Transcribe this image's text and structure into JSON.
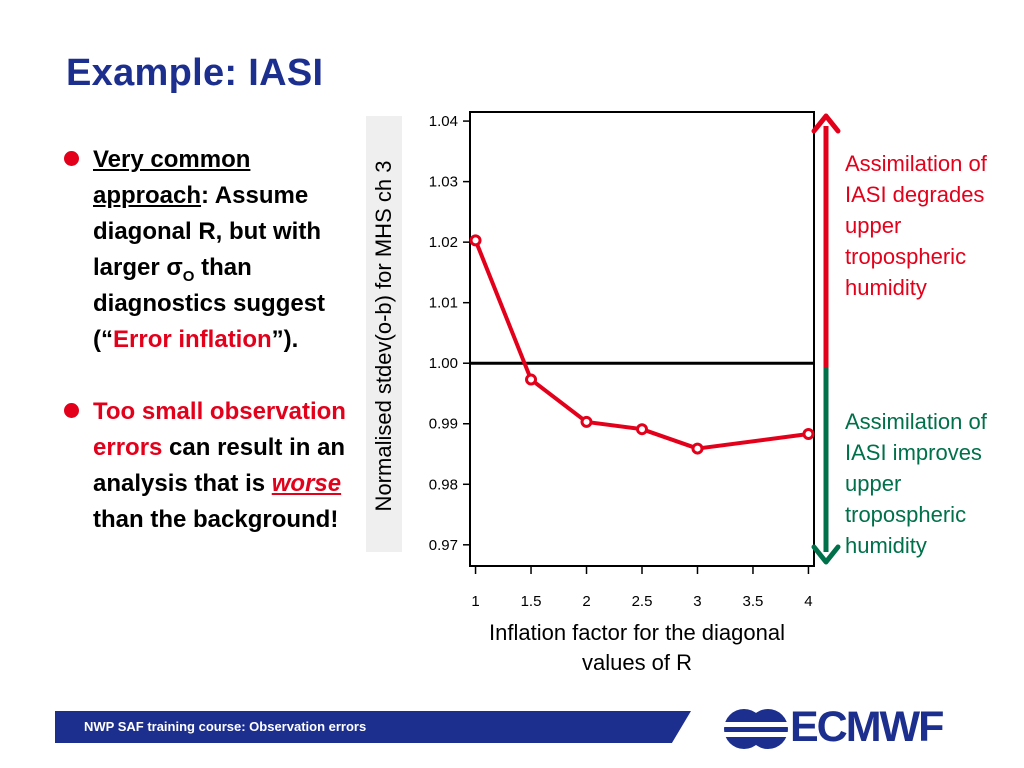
{
  "slide": {
    "title": "Example: IASI",
    "bullets": [
      {
        "term": "Very common approach",
        "text_a": ": Assume diagonal R, but with larger σ",
        "sub": "O",
        "text_b": " than diagnostics suggest (“",
        "emph": "Error inflation",
        "text_c": "”)."
      },
      {
        "emph": "Too small observation errors",
        "text_a": " can result in an analysis that is ",
        "emph2": "worse",
        "text_b": " than the background!"
      }
    ],
    "x_caption": "Inflation factor for the diagonal values of R",
    "anno_degrades": "Assimilation of IASI degrades upper tropospheric humidity",
    "anno_improves": "Assimilation of IASI improves upper tropospheric humidity",
    "footer": "NWP SAF training course: Observation errors",
    "logo_text": "ECMWF"
  },
  "colors": {
    "title": "#1c2f8f",
    "emphasis": "#e3001b",
    "improves": "#00704a",
    "series": "#e3001b",
    "footer": "#1c2f8f"
  },
  "chart_data": {
    "type": "line",
    "ylabel": "Normalised stdev(o-b) for MHS ch 3",
    "x": [
      1,
      1.5,
      2,
      2.5,
      3,
      4
    ],
    "xticks": [
      "1",
      "1.5",
      "2",
      "2.5",
      "3",
      "3.5",
      "4"
    ],
    "xtick_values": [
      1,
      1.5,
      2,
      2.5,
      3,
      3.5,
      4
    ],
    "yticks": [
      "0.97",
      "0.98",
      "0.99",
      "1.00",
      "1.01",
      "1.02",
      "1.03",
      "1.04"
    ],
    "ytick_values": [
      0.97,
      0.98,
      0.99,
      1.0,
      1.01,
      1.02,
      1.03,
      1.04
    ],
    "xlim": [
      0.95,
      4.05
    ],
    "ylim": [
      0.9665,
      1.0415
    ],
    "series": [
      {
        "values": [
          1.0203,
          0.9973,
          0.9903,
          0.9891,
          0.9859,
          0.9883
        ]
      }
    ],
    "reference_line": 1.0,
    "grid": false
  }
}
